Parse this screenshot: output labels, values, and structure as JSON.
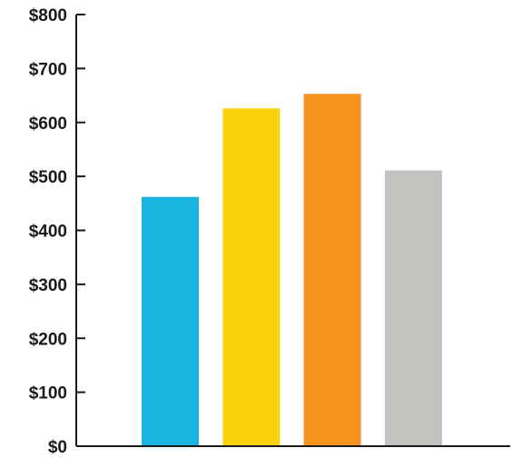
{
  "chart_data": {
    "type": "bar",
    "title": "",
    "xlabel": "",
    "ylabel": "",
    "categories": [
      "",
      "",
      "",
      ""
    ],
    "values": [
      462,
      626,
      653,
      511
    ],
    "bar_colors": [
      "#1ab4e0",
      "#fbd10b",
      "#f6921e",
      "#c3c2be"
    ],
    "ylim": [
      0,
      800
    ],
    "yticks": [
      0,
      100,
      200,
      300,
      400,
      500,
      600,
      700,
      800
    ],
    "ytick_labels": [
      "$0",
      "$100",
      "$200",
      "$300",
      "$400",
      "$500",
      "$600",
      "$700",
      "$800"
    ],
    "grid": false,
    "legend": "none"
  }
}
